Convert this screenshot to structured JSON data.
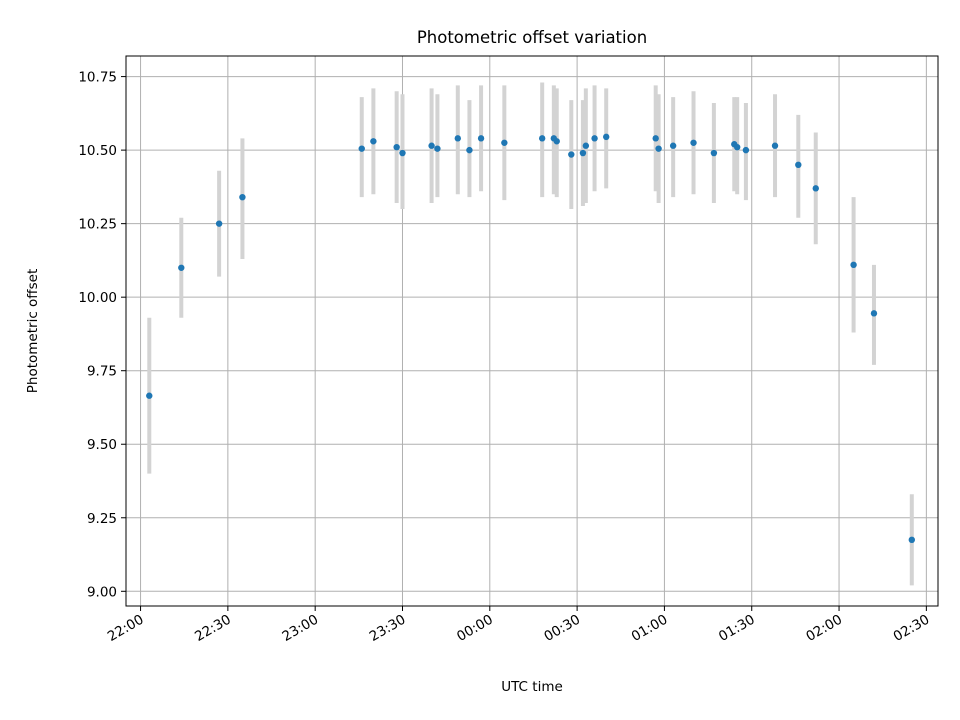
{
  "chart_data": {
    "type": "scatter",
    "title": "Photometric offset variation",
    "xlabel": "UTC time",
    "ylabel": "Photometric offset",
    "x_ticks": [
      "22:00",
      "22:30",
      "23:00",
      "23:30",
      "00:00",
      "00:30",
      "01:00",
      "01:30",
      "02:00",
      "02:30"
    ],
    "y_ticks": [
      "9.00",
      "9.25",
      "9.50",
      "9.75",
      "10.00",
      "10.25",
      "10.50",
      "10.75"
    ],
    "xlim": [
      "21:55",
      "02:34"
    ],
    "ylim": [
      8.95,
      10.82
    ],
    "grid": true,
    "point_color": "#1f77b4",
    "errorbar_color": "#d3d3d3",
    "points": [
      {
        "x": "22:03",
        "y": 9.665,
        "y_err_low": 9.4,
        "y_err_high": 9.93
      },
      {
        "x": "22:14",
        "y": 10.1,
        "y_err_low": 9.93,
        "y_err_high": 10.27
      },
      {
        "x": "22:27",
        "y": 10.25,
        "y_err_low": 10.07,
        "y_err_high": 10.43
      },
      {
        "x": "22:35",
        "y": 10.34,
        "y_err_low": 10.13,
        "y_err_high": 10.54
      },
      {
        "x": "23:16",
        "y": 10.505,
        "y_err_low": 10.34,
        "y_err_high": 10.68
      },
      {
        "x": "23:20",
        "y": 10.53,
        "y_err_low": 10.35,
        "y_err_high": 10.71
      },
      {
        "x": "23:28",
        "y": 10.51,
        "y_err_low": 10.32,
        "y_err_high": 10.7
      },
      {
        "x": "23:30",
        "y": 10.49,
        "y_err_low": 10.3,
        "y_err_high": 10.69
      },
      {
        "x": "23:40",
        "y": 10.515,
        "y_err_low": 10.32,
        "y_err_high": 10.71
      },
      {
        "x": "23:42",
        "y": 10.505,
        "y_err_low": 10.34,
        "y_err_high": 10.69
      },
      {
        "x": "23:49",
        "y": 10.54,
        "y_err_low": 10.35,
        "y_err_high": 10.72
      },
      {
        "x": "23:53",
        "y": 10.5,
        "y_err_low": 10.34,
        "y_err_high": 10.67
      },
      {
        "x": "23:57",
        "y": 10.54,
        "y_err_low": 10.36,
        "y_err_high": 10.72
      },
      {
        "x": "00:05",
        "y": 10.525,
        "y_err_low": 10.33,
        "y_err_high": 10.72
      },
      {
        "x": "00:18",
        "y": 10.54,
        "y_err_low": 10.34,
        "y_err_high": 10.73
      },
      {
        "x": "00:22",
        "y": 10.54,
        "y_err_low": 10.35,
        "y_err_high": 10.72
      },
      {
        "x": "00:23",
        "y": 10.53,
        "y_err_low": 10.34,
        "y_err_high": 10.71
      },
      {
        "x": "00:28",
        "y": 10.485,
        "y_err_low": 10.3,
        "y_err_high": 10.67
      },
      {
        "x": "00:32",
        "y": 10.49,
        "y_err_low": 10.31,
        "y_err_high": 10.67
      },
      {
        "x": "00:33",
        "y": 10.515,
        "y_err_low": 10.32,
        "y_err_high": 10.71
      },
      {
        "x": "00:36",
        "y": 10.54,
        "y_err_low": 10.36,
        "y_err_high": 10.72
      },
      {
        "x": "00:40",
        "y": 10.545,
        "y_err_low": 10.37,
        "y_err_high": 10.71
      },
      {
        "x": "00:57",
        "y": 10.54,
        "y_err_low": 10.36,
        "y_err_high": 10.72
      },
      {
        "x": "00:58",
        "y": 10.505,
        "y_err_low": 10.32,
        "y_err_high": 10.69
      },
      {
        "x": "01:03",
        "y": 10.515,
        "y_err_low": 10.34,
        "y_err_high": 10.68
      },
      {
        "x": "01:10",
        "y": 10.525,
        "y_err_low": 10.35,
        "y_err_high": 10.7
      },
      {
        "x": "01:17",
        "y": 10.49,
        "y_err_low": 10.32,
        "y_err_high": 10.66
      },
      {
        "x": "01:24",
        "y": 10.52,
        "y_err_low": 10.36,
        "y_err_high": 10.68
      },
      {
        "x": "01:25",
        "y": 10.51,
        "y_err_low": 10.35,
        "y_err_high": 10.68
      },
      {
        "x": "01:28",
        "y": 10.5,
        "y_err_low": 10.33,
        "y_err_high": 10.66
      },
      {
        "x": "01:38",
        "y": 10.515,
        "y_err_low": 10.34,
        "y_err_high": 10.69
      },
      {
        "x": "01:46",
        "y": 10.45,
        "y_err_low": 10.27,
        "y_err_high": 10.62
      },
      {
        "x": "01:52",
        "y": 10.37,
        "y_err_low": 10.18,
        "y_err_high": 10.56
      },
      {
        "x": "02:05",
        "y": 10.11,
        "y_err_low": 9.88,
        "y_err_high": 10.34
      },
      {
        "x": "02:12",
        "y": 9.945,
        "y_err_low": 9.77,
        "y_err_high": 10.11
      },
      {
        "x": "02:25",
        "y": 9.175,
        "y_err_low": 9.02,
        "y_err_high": 9.33
      }
    ]
  }
}
